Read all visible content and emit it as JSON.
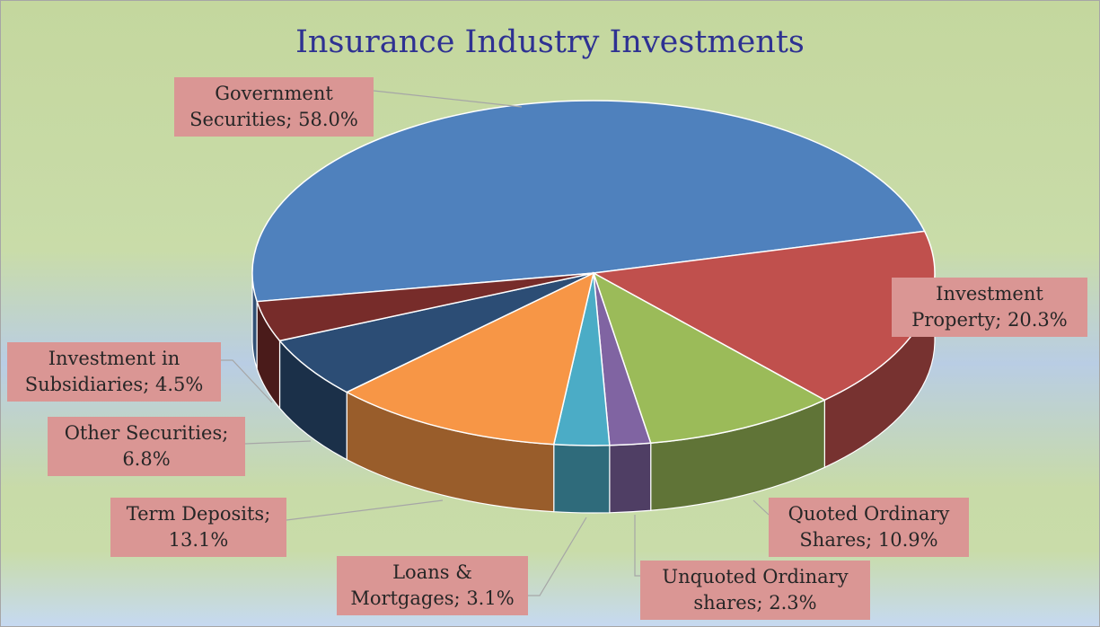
{
  "chart_data": {
    "type": "pie",
    "title": "Insurance Industry Investments",
    "three_d": true,
    "categories": [
      "Government Securities",
      "Investment Property",
      "Quoted Ordinary Shares",
      "Unquoted Ordinary shares",
      "Loans & Mortgages",
      "Term Deposits",
      "Other Securities",
      "Investment in Subsidiaries"
    ],
    "values": [
      58.0,
      20.3,
      10.9,
      2.3,
      3.1,
      13.1,
      6.8,
      4.5
    ],
    "value_labels": [
      "58.0%",
      "20.3%",
      "10.9%",
      "2.3%",
      "3.1%",
      "13.1%",
      "6.8%",
      "4.5%"
    ],
    "colors": [
      "#4f81bd",
      "#c0504d",
      "#9bbb59",
      "#8064a2",
      "#4bacc6",
      "#f79646",
      "#2c4d75",
      "#772c2a"
    ]
  }
}
